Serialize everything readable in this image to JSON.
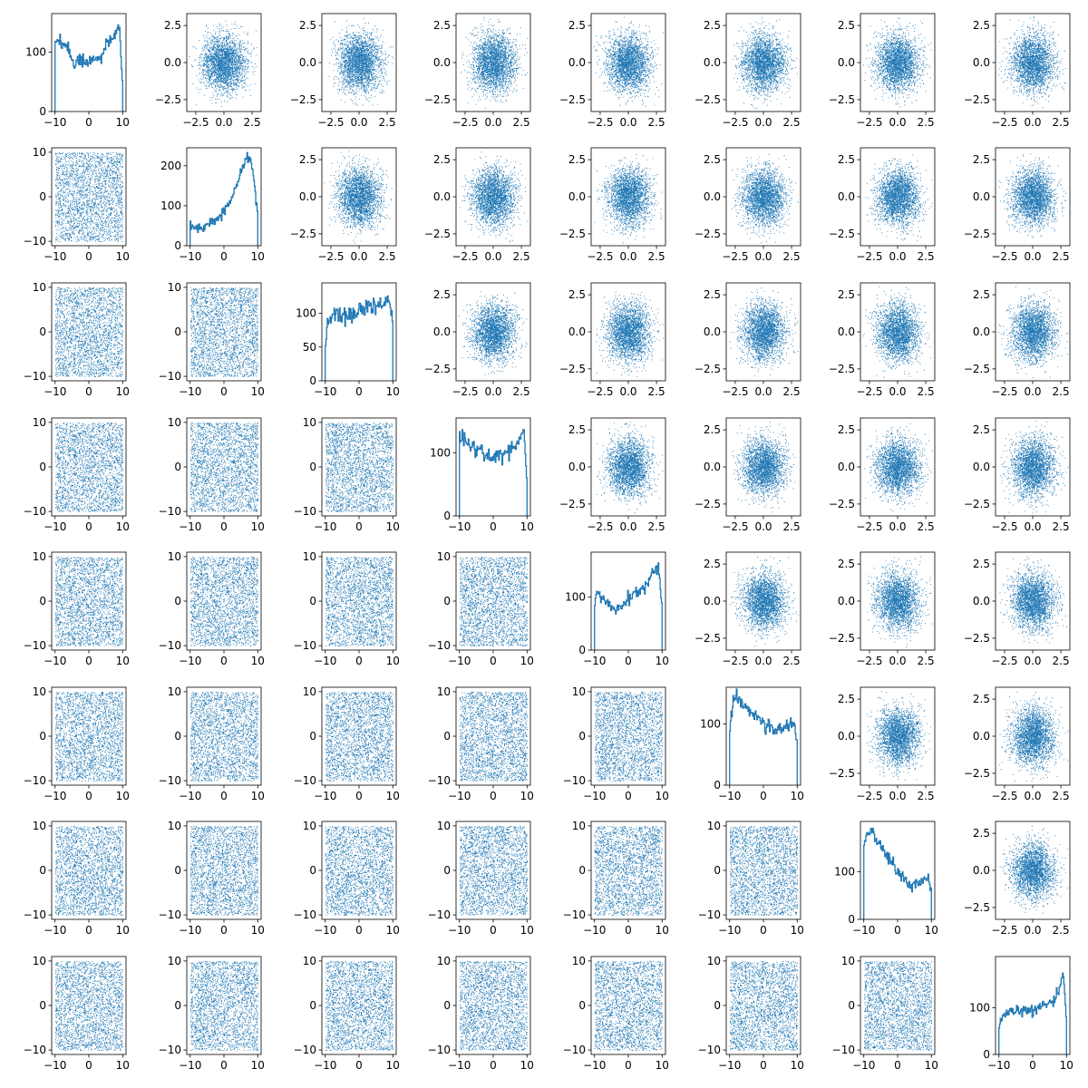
{
  "chart_data": {
    "type": "pair-grid",
    "title": "",
    "n_vars": 8,
    "colors": {
      "series": "#1f77b4",
      "axis": "#000000",
      "background": "#ffffff"
    },
    "diagonal": {
      "type": "histogram-step",
      "xlim": [
        -10,
        10
      ],
      "xticks": [
        "-10",
        "0",
        "10"
      ],
      "panels": [
        {
          "ylim": [
            0,
            165
          ],
          "yticks": [
            "0",
            "100"
          ],
          "profile": [
            [
              -10,
              110
            ],
            [
              -9,
              125
            ],
            [
              -8,
              115
            ],
            [
              -6,
              100
            ],
            [
              -4,
              80
            ],
            [
              -2,
              85
            ],
            [
              0,
              85
            ],
            [
              2,
              90
            ],
            [
              4,
              95
            ],
            [
              6,
              115
            ],
            [
              8,
              130
            ],
            [
              9,
              150
            ],
            [
              10,
              40
            ]
          ]
        },
        {
          "ylim": [
            0,
            245
          ],
          "yticks": [
            "0",
            "100",
            "200"
          ],
          "profile": [
            [
              -10,
              50
            ],
            [
              -8,
              48
            ],
            [
              -6,
              45
            ],
            [
              -4,
              55
            ],
            [
              -2,
              65
            ],
            [
              0,
              85
            ],
            [
              2,
              115
            ],
            [
              4,
              160
            ],
            [
              6,
              205
            ],
            [
              7,
              225
            ],
            [
              8,
              210
            ],
            [
              9,
              160
            ],
            [
              10,
              80
            ]
          ]
        },
        {
          "ylim": [
            0,
            145
          ],
          "yticks": [
            "0",
            "50",
            "100"
          ],
          "profile": [
            [
              -10,
              55
            ],
            [
              -9,
              90
            ],
            [
              -8,
              95
            ],
            [
              -6,
              98
            ],
            [
              -4,
              96
            ],
            [
              -2,
              100
            ],
            [
              0,
              104
            ],
            [
              2,
              107
            ],
            [
              4,
              110
            ],
            [
              6,
              113
            ],
            [
              8,
              118
            ],
            [
              9,
              122
            ],
            [
              10,
              80
            ]
          ]
        },
        {
          "ylim": [
            0,
            155
          ],
          "yticks": [
            "0",
            "100"
          ],
          "profile": [
            [
              -10,
              110
            ],
            [
              -9,
              130
            ],
            [
              -8,
              120
            ],
            [
              -6,
              108
            ],
            [
              -4,
              103
            ],
            [
              -2,
              95
            ],
            [
              0,
              92
            ],
            [
              2,
              97
            ],
            [
              4,
              100
            ],
            [
              6,
              108
            ],
            [
              8,
              120
            ],
            [
              9,
              140
            ],
            [
              10,
              60
            ]
          ]
        },
        {
          "ylim": [
            0,
            185
          ],
          "yticks": [
            "0",
            "100"
          ],
          "profile": [
            [
              -10,
              95
            ],
            [
              -9,
              105
            ],
            [
              -8,
              100
            ],
            [
              -6,
              90
            ],
            [
              -4,
              80
            ],
            [
              -2,
              85
            ],
            [
              0,
              95
            ],
            [
              2,
              105
            ],
            [
              4,
              115
            ],
            [
              6,
              130
            ],
            [
              8,
              150
            ],
            [
              9,
              160
            ],
            [
              10,
              80
            ]
          ]
        },
        {
          "ylim": [
            0,
            160
          ],
          "yticks": [
            "0",
            "100"
          ],
          "profile": [
            [
              -10,
              95
            ],
            [
              -9,
              135
            ],
            [
              -8,
              145
            ],
            [
              -6,
              130
            ],
            [
              -4,
              120
            ],
            [
              -2,
              115
            ],
            [
              0,
              100
            ],
            [
              2,
              95
            ],
            [
              4,
              90
            ],
            [
              6,
              95
            ],
            [
              8,
              100
            ],
            [
              9,
              110
            ],
            [
              10,
              60
            ]
          ]
        },
        {
          "ylim": [
            0,
            205
          ],
          "yticks": [
            "0",
            "100"
          ],
          "profile": [
            [
              -10,
              150
            ],
            [
              -9,
              180
            ],
            [
              -8,
              190
            ],
            [
              -6,
              165
            ],
            [
              -4,
              140
            ],
            [
              -2,
              120
            ],
            [
              0,
              100
            ],
            [
              2,
              85
            ],
            [
              4,
              72
            ],
            [
              6,
              75
            ],
            [
              8,
              85
            ],
            [
              9,
              90
            ],
            [
              10,
              50
            ]
          ]
        },
        {
          "ylim": [
            0,
            210
          ],
          "yticks": [
            "0",
            "100"
          ],
          "profile": [
            [
              -10,
              60
            ],
            [
              -9,
              80
            ],
            [
              -8,
              88
            ],
            [
              -6,
              90
            ],
            [
              -4,
              92
            ],
            [
              -2,
              93
            ],
            [
              0,
              96
            ],
            [
              2,
              100
            ],
            [
              4,
              108
            ],
            [
              6,
              115
            ],
            [
              8,
              140
            ],
            [
              9,
              185
            ],
            [
              10,
              70
            ]
          ]
        }
      ]
    },
    "lower": {
      "type": "scatter",
      "xlim": [
        -11,
        11
      ],
      "ylim": [
        -11,
        11
      ],
      "xticks": [
        "-10",
        "0",
        "10"
      ],
      "yticks": [
        "-10",
        "0",
        "10"
      ],
      "distribution": "uniform on [-10, 10]"
    },
    "upper": {
      "type": "scatter",
      "xlim": [
        -3.3,
        3.3
      ],
      "ylim": [
        -3.3,
        3.3
      ],
      "xticks": [
        "-2.5",
        "0.0",
        "2.5"
      ],
      "yticks": [
        "-2.5",
        "0.0",
        "2.5"
      ],
      "distribution": "standard normal"
    }
  }
}
